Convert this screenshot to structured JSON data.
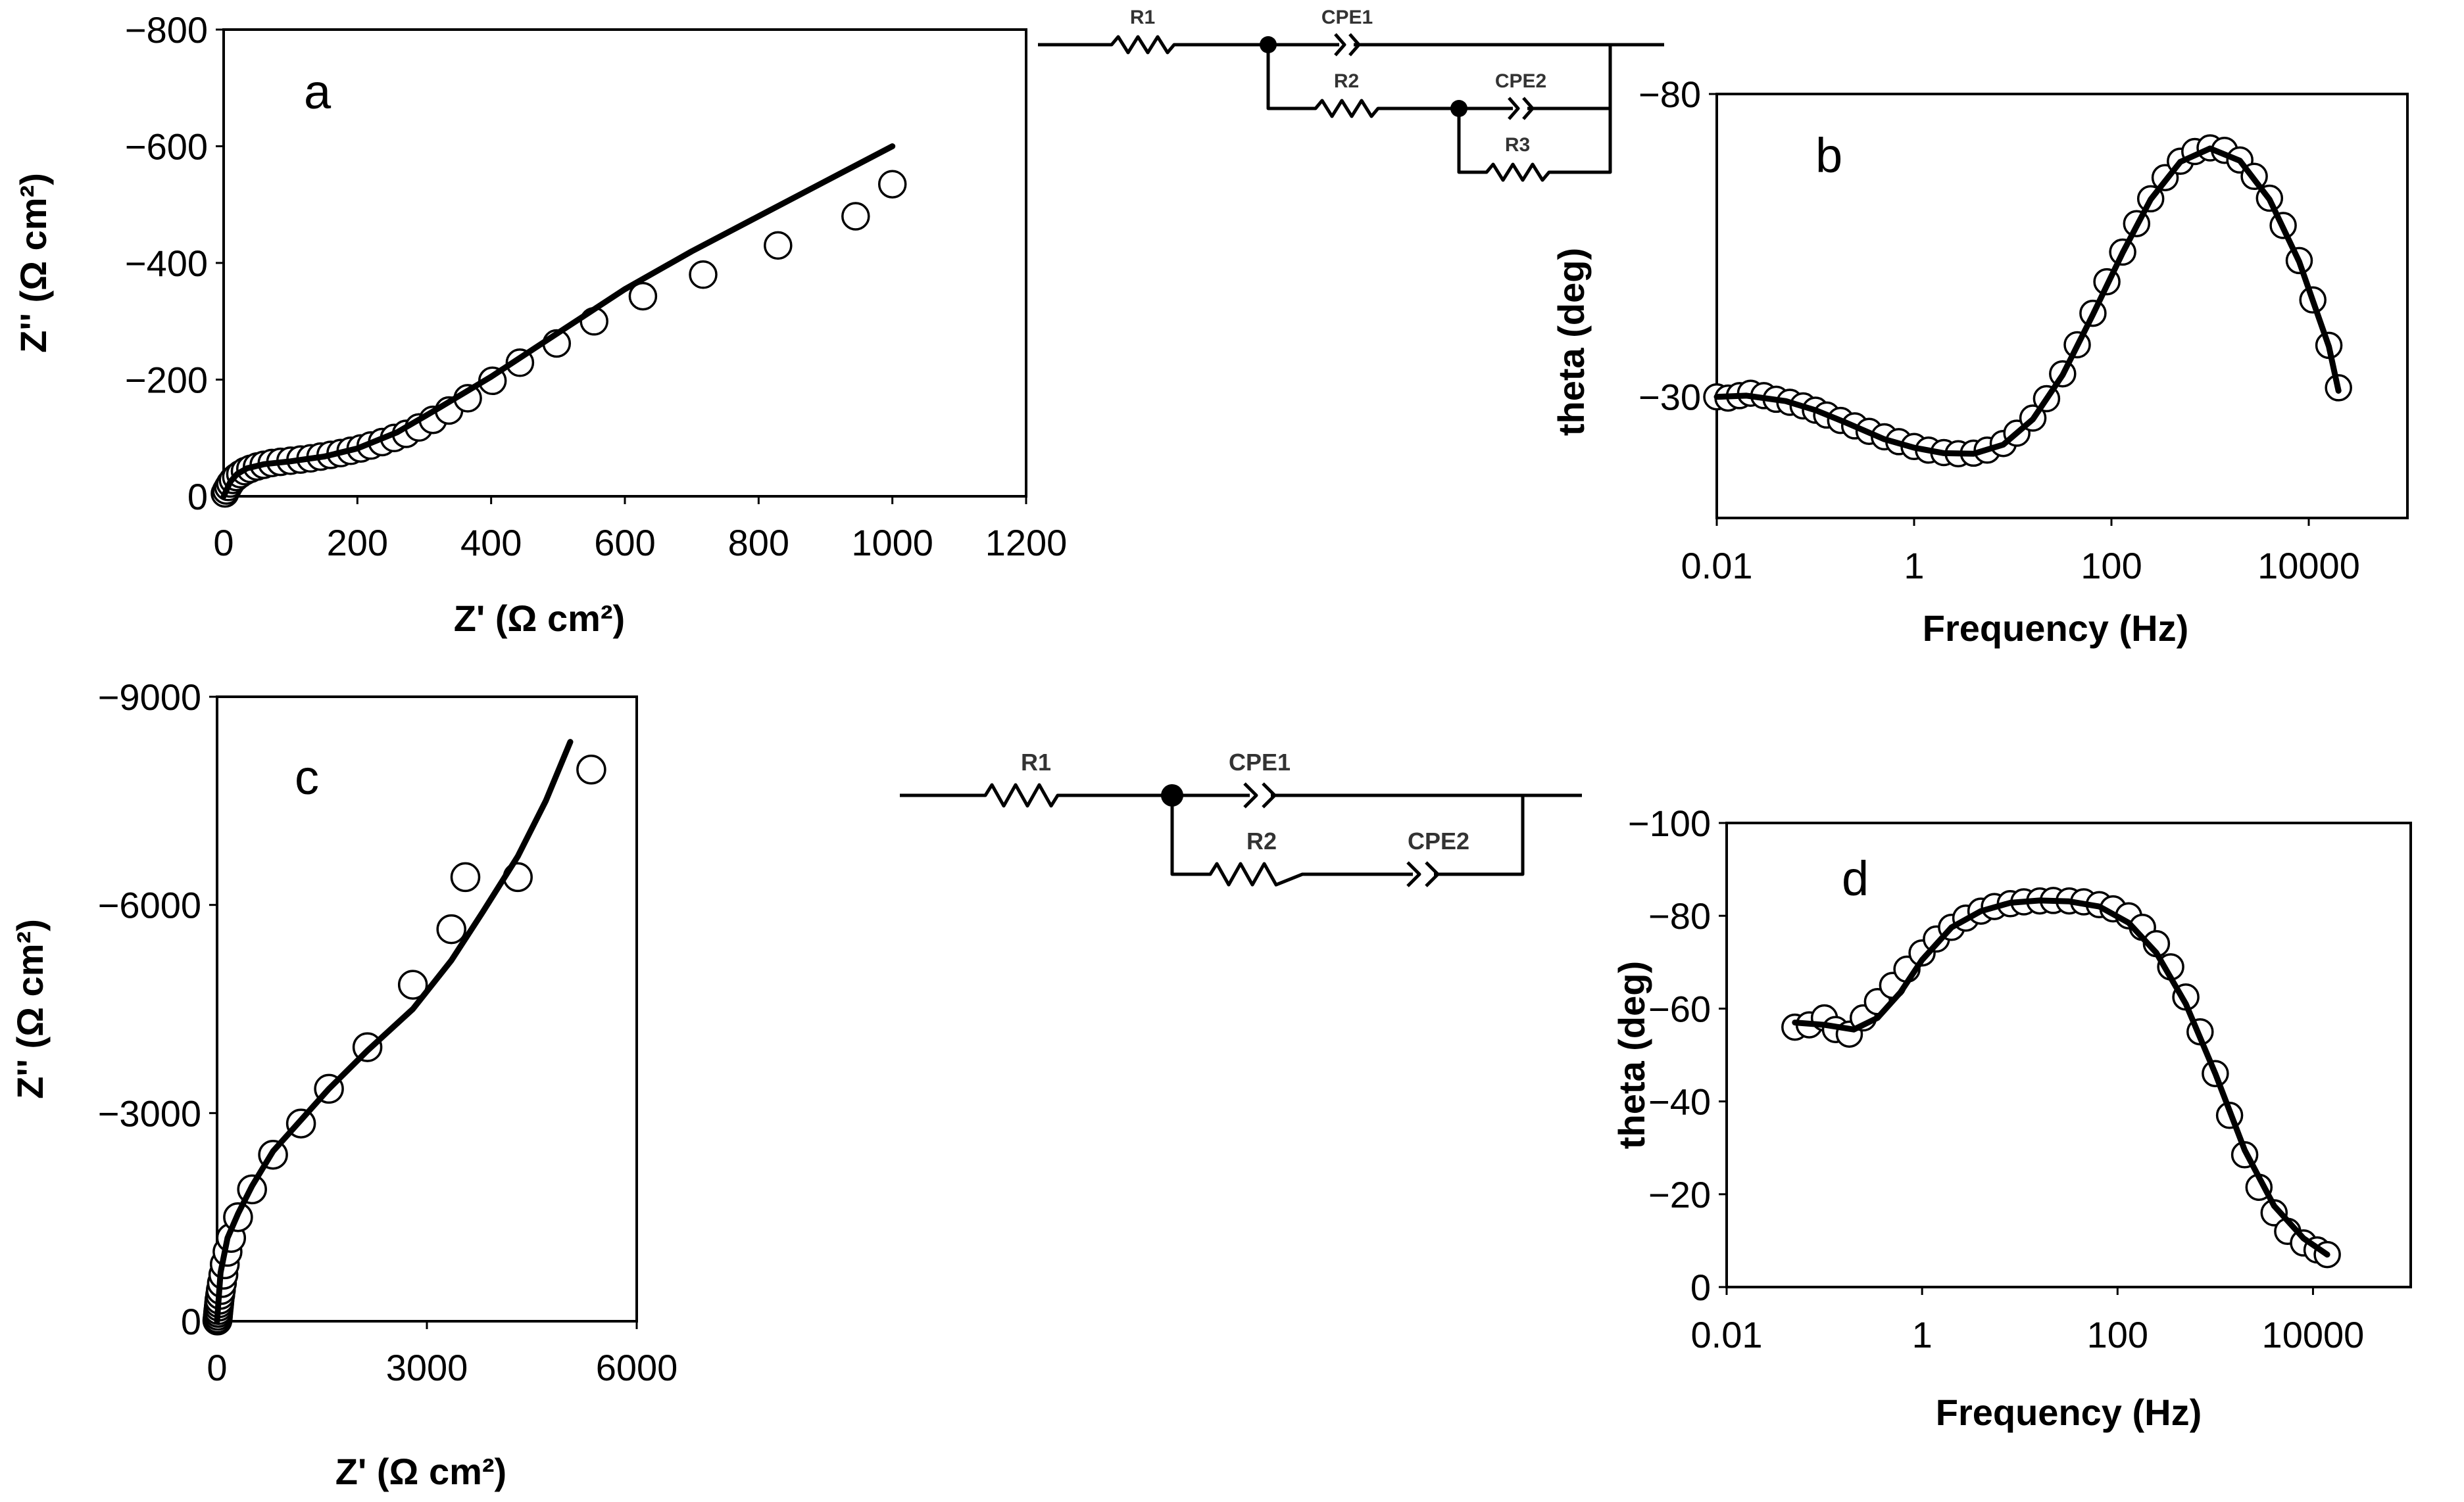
{
  "chart_data": [
    {
      "id": "a",
      "type": "scatter",
      "panel_label": "a",
      "title": "",
      "xlabel": "Z' (Ω cm²)",
      "ylabel": "Z'' (Ω cm²)",
      "xlim": [
        0,
        1200
      ],
      "ylim": [
        0,
        -800
      ],
      "xticks": [
        0,
        200,
        400,
        600,
        800,
        1000,
        1200
      ],
      "yticks": [
        0,
        -200,
        -400,
        -600,
        -800
      ],
      "grid": false,
      "series": [
        {
          "name": "experimental",
          "style": "open-circles",
          "x": [
            2,
            4,
            7,
            10,
            14,
            19,
            25,
            32,
            40,
            50,
            60,
            72,
            85,
            100,
            115,
            130,
            145,
            160,
            175,
            190,
            205,
            220,
            237,
            255,
            273,
            292,
            313,
            337,
            365,
            402,
            443,
            498,
            554,
            627,
            717,
            829,
            945,
            1000
          ],
          "y": [
            -5,
            -10,
            -16,
            -22,
            -28,
            -33,
            -38,
            -43,
            -47,
            -51,
            -54,
            -57,
            -59,
            -61,
            -63,
            -65,
            -68,
            -71,
            -74,
            -78,
            -82,
            -87,
            -93,
            -100,
            -107,
            -118,
            -131,
            -147,
            -168,
            -198,
            -229,
            -262,
            -300,
            -343,
            -380,
            -430,
            -480,
            -535
          ]
        },
        {
          "name": "fit",
          "style": "line",
          "x": [
            0,
            10,
            20,
            35,
            60,
            100,
            150,
            200,
            260,
            320,
            400,
            500,
            600,
            700,
            800,
            900,
            1000
          ],
          "y": [
            0,
            -25,
            -38,
            -48,
            -55,
            -60,
            -68,
            -82,
            -110,
            -150,
            -205,
            -280,
            -355,
            -420,
            -480,
            -540,
            -600
          ]
        }
      ]
    },
    {
      "id": "b",
      "type": "scatter",
      "panel_label": "b",
      "title": "",
      "xlabel": "Frequency (Hz)",
      "ylabel": "theta (deg)",
      "xscale": "log",
      "xlim": [
        0.01,
        100000
      ],
      "ylim": [
        -10,
        -80
      ],
      "xtick_labels": [
        "0.01",
        "1",
        "100",
        "10000"
      ],
      "ytick_labels": [
        "-30",
        "-80"
      ],
      "grid": false,
      "series": [
        {
          "name": "experimental",
          "style": "open-circles",
          "x": [
            0.01,
            0.013,
            0.017,
            0.022,
            0.03,
            0.04,
            0.055,
            0.075,
            0.1,
            0.13,
            0.18,
            0.25,
            0.35,
            0.5,
            0.7,
            1,
            1.4,
            2,
            2.8,
            4,
            5.5,
            8,
            11,
            16,
            22,
            32,
            45,
            65,
            90,
            130,
            180,
            250,
            350,
            500,
            700,
            1000,
            1400,
            2000,
            2800,
            4000,
            5500,
            8000,
            11000,
            16000,
            20000
          ],
          "y": [
            -30,
            -29.8,
            -30.2,
            -30.6,
            -30.2,
            -29.6,
            -29.1,
            -28.5,
            -27.8,
            -27.0,
            -26.1,
            -25.2,
            -24.3,
            -23.4,
            -22.6,
            -21.8,
            -21.2,
            -20.8,
            -20.6,
            -20.7,
            -21.2,
            -22.3,
            -24.0,
            -26.5,
            -29.7,
            -33.8,
            -38.6,
            -43.8,
            -49.0,
            -53.9,
            -58.6,
            -62.7,
            -66.2,
            -68.9,
            -70.5,
            -71.1,
            -70.7,
            -69.1,
            -66.4,
            -62.8,
            -58.3,
            -52.5,
            -46.0,
            -38.5,
            -31.5
          ]
        },
        {
          "name": "fit",
          "style": "line",
          "x": [
            0.01,
            0.02,
            0.05,
            0.1,
            0.2,
            0.5,
            1,
            2,
            4,
            8,
            16,
            32,
            65,
            130,
            250,
            500,
            1000,
            2000,
            4000,
            8000,
            16000,
            20000
          ],
          "y": [
            -30,
            -30.2,
            -29.3,
            -27.8,
            -25.8,
            -23.0,
            -21.6,
            -20.7,
            -20.6,
            -22.1,
            -26.3,
            -33.6,
            -43.6,
            -53.8,
            -62.6,
            -68.8,
            -71.0,
            -69.0,
            -62.6,
            -52.3,
            -38.3,
            -31.0
          ]
        }
      ]
    },
    {
      "id": "c",
      "type": "scatter",
      "panel_label": "c",
      "title": "",
      "xlabel": "Z' (Ω cm²)",
      "ylabel": "Z'' (Ω cm²)",
      "xlim": [
        0,
        6000
      ],
      "ylim": [
        0,
        -9000
      ],
      "xticks": [
        0,
        3000,
        6000
      ],
      "yticks": [
        0,
        -3000,
        -6000,
        -9000
      ],
      "grid": false,
      "series": [
        {
          "name": "experimental",
          "style": "open-circles",
          "x": [
            5,
            8,
            12,
            16,
            20,
            25,
            30,
            35,
            45,
            55,
            70,
            90,
            110,
            150,
            200,
            300,
            500,
            800,
            1200,
            1600,
            2150,
            2800,
            3350,
            3550,
            4300,
            5350
          ],
          "y": [
            -10,
            -40,
            -80,
            -120,
            -160,
            -210,
            -260,
            -310,
            -380,
            -450,
            -550,
            -670,
            -820,
            -1000,
            -1200,
            -1500,
            -1900,
            -2400,
            -2850,
            -3350,
            -3950,
            -4850,
            -5650,
            -6400,
            -6400,
            -7950
          ]
        },
        {
          "name": "fit",
          "style": "line",
          "x": [
            0,
            50,
            150,
            300,
            500,
            800,
            1200,
            1600,
            2150,
            2800,
            3350,
            3800,
            4300,
            4700,
            5050
          ],
          "y": [
            0,
            -700,
            -1200,
            -1550,
            -1950,
            -2450,
            -2900,
            -3350,
            -3900,
            -4500,
            -5200,
            -5900,
            -6700,
            -7500,
            -8350
          ]
        }
      ]
    },
    {
      "id": "d",
      "type": "scatter",
      "panel_label": "d",
      "title": "",
      "xlabel": "Frequency (Hz)",
      "ylabel": "theta (deg)",
      "xscale": "log",
      "xlim": [
        0.01,
        100000
      ],
      "ylim": [
        0,
        -100
      ],
      "xtick_labels": [
        "0.01",
        "1",
        "100",
        "10000"
      ],
      "ytick_labels": [
        "0",
        "-20",
        "-40",
        "-60",
        "-80",
        "-100"
      ],
      "grid": false,
      "series": [
        {
          "name": "experimental",
          "style": "open-circles",
          "x": [
            0.05,
            0.07,
            0.1,
            0.13,
            0.18,
            0.25,
            0.35,
            0.5,
            0.7,
            1,
            1.4,
            2,
            2.8,
            4,
            5.5,
            8,
            11,
            16,
            22,
            32,
            45,
            65,
            90,
            130,
            180,
            250,
            350,
            500,
            700,
            1000,
            1400,
            2000,
            2800,
            4000,
            5500,
            8000,
            11000,
            14000
          ],
          "y": [
            -56,
            -56.5,
            -58,
            -55.5,
            -54.5,
            -58,
            -61.5,
            -65,
            -68.5,
            -72,
            -75,
            -77.5,
            -79.5,
            -81,
            -82,
            -82.6,
            -83,
            -83.2,
            -83.3,
            -83.2,
            -83,
            -82.4,
            -81.5,
            -80,
            -77.5,
            -74,
            -69,
            -62.5,
            -55,
            -46,
            -37,
            -28.5,
            -21.5,
            -16,
            -12,
            -9.5,
            -8,
            -7
          ]
        },
        {
          "name": "fit",
          "style": "line",
          "x": [
            0.05,
            0.1,
            0.2,
            0.35,
            0.6,
            1,
            2,
            4,
            8,
            16,
            32,
            65,
            130,
            250,
            500,
            1000,
            2000,
            4000,
            8000,
            14000
          ],
          "y": [
            -57,
            -56.5,
            -55.5,
            -58,
            -63.5,
            -70.5,
            -77.5,
            -81,
            -82.8,
            -83.3,
            -83.1,
            -82,
            -78.5,
            -72,
            -61,
            -46,
            -29.5,
            -17.5,
            -10.5,
            -7
          ]
        }
      ]
    }
  ],
  "circuits": {
    "top": {
      "labels": [
        "R1",
        "CPE1",
        "R2",
        "CPE2",
        "R3"
      ]
    },
    "bottom": {
      "labels": [
        "R1",
        "CPE1",
        "R2",
        "CPE2"
      ]
    }
  }
}
